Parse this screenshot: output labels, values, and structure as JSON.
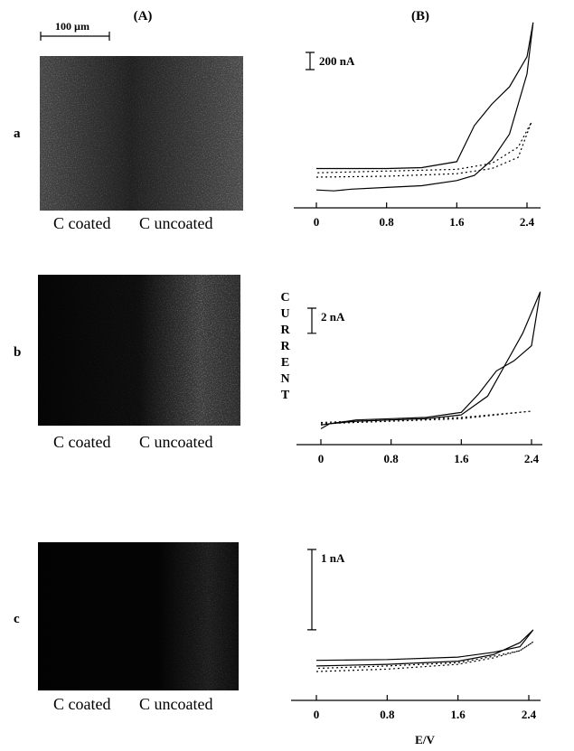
{
  "panel_labels": {
    "left": "(A)",
    "right": "(B)"
  },
  "scale_bar_label": "100 µm",
  "rows": [
    {
      "label": "a",
      "caption_left": "C coated",
      "caption_right": "C uncoated"
    },
    {
      "label": "b",
      "caption_left": "C coated",
      "caption_right": "C uncoated"
    },
    {
      "label": "c",
      "caption_left": "C coated",
      "caption_right": "C uncoated"
    }
  ],
  "y_axis_label": "CURRENT",
  "chart_data": [
    {
      "type": "line",
      "xlim": [
        0,
        2.4
      ],
      "xticks": [
        0,
        0.8,
        1.6,
        2.4
      ],
      "ylim": [
        -100,
        1950
      ],
      "scale_bar": {
        "value": 200,
        "label": "200 nA"
      },
      "series": [
        {
          "color": "#000000",
          "dash": "solid",
          "x": [
            0,
            0.2,
            0.4,
            0.8,
            1.2,
            1.6,
            1.8,
            2.0,
            2.2,
            2.4,
            2.47,
            2.4,
            2.2,
            2.0,
            1.8,
            1.6,
            1.2,
            0.8,
            0.4,
            0
          ],
          "values": [
            -50,
            -60,
            -40,
            -20,
            0,
            60,
            120,
            300,
            600,
            1300,
            1900,
            1500,
            1150,
            950,
            700,
            280,
            210,
            200,
            200,
            200
          ]
        },
        {
          "color": "#000000",
          "dash": "dotted",
          "x": [
            0,
            0.8,
            1.6,
            2.0,
            2.3,
            2.45,
            2.3,
            2.0,
            1.6,
            0.8,
            0
          ],
          "values": [
            100,
            110,
            140,
            200,
            330,
            740,
            450,
            260,
            190,
            170,
            150
          ]
        }
      ]
    },
    {
      "type": "line",
      "xlim": [
        0,
        2.4
      ],
      "xticks": [
        0,
        0.8,
        1.6,
        2.4
      ],
      "ylim": [
        -1,
        10.5
      ],
      "scale_bar": {
        "value": 2,
        "label": "2 nA"
      },
      "series": [
        {
          "color": "#000000",
          "dash": "solid",
          "x": [
            0,
            0.1,
            0.4,
            0.8,
            1.2,
            1.6,
            1.9,
            2.1,
            2.3,
            2.5,
            2.4,
            2.2,
            2.0,
            1.8,
            1.6,
            1.2,
            0.8,
            0.4,
            0.1,
            0
          ],
          "values": [
            -0.6,
            -0.2,
            0,
            0.1,
            0.2,
            0.5,
            2.0,
            4.5,
            7,
            10.3,
            6,
            4.8,
            4.0,
            2.2,
            0.7,
            0.3,
            0.2,
            0.1,
            -0.2,
            -0.3
          ]
        },
        {
          "color": "#000000",
          "dash": "dotted",
          "x": [
            0,
            0.8,
            1.6,
            2.4,
            1.6,
            0.8,
            0
          ],
          "values": [
            -0.1,
            0.1,
            0.3,
            0.8,
            0.2,
            0,
            -0.2
          ]
        }
      ]
    },
    {
      "type": "line",
      "xlim": [
        0,
        2.4
      ],
      "xticks": [
        0,
        0.8,
        1.6,
        2.4
      ],
      "ylim": [
        -0.5,
        1.3
      ],
      "x_label": "E/V",
      "scale_bar": {
        "value": 1,
        "label": "1 nA"
      },
      "series": [
        {
          "color": "#000000",
          "dash": "solid",
          "x": [
            0,
            0.8,
            1.6,
            2.0,
            2.3,
            2.45,
            2.3,
            2.0,
            1.6,
            0.8,
            0
          ],
          "values": [
            -0.24,
            -0.22,
            -0.18,
            -0.1,
            0.05,
            0.21,
            0.0,
            -0.07,
            -0.13,
            -0.16,
            -0.17
          ]
        },
        {
          "color": "#000000",
          "dash": "dotted",
          "x": [
            0,
            0.8,
            1.6,
            2.0,
            2.3,
            2.45,
            2.3,
            2.0,
            1.6,
            0.8,
            0
          ],
          "values": [
            -0.31,
            -0.28,
            -0.22,
            -0.14,
            -0.05,
            0.06,
            -0.05,
            -0.12,
            -0.2,
            -0.24,
            -0.27
          ]
        }
      ]
    }
  ]
}
